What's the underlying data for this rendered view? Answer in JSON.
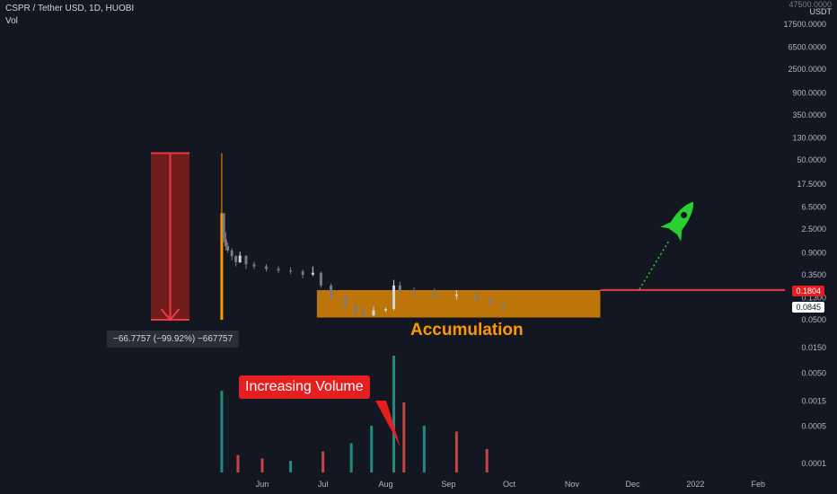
{
  "header": {
    "title": "CSPR / Tether USD, 1D, HUOBI",
    "volume_label": "Vol"
  },
  "axis": {
    "top_cut_label": "47500.0000",
    "currency": "USDT",
    "price_ticks": [
      "17500.0000",
      "6500.0000",
      "2500.0000",
      "900.0000",
      "350.0000",
      "130.0000",
      "50.0000",
      "17.5000",
      "6.5000",
      "2.5000",
      "0.9000",
      "0.3500",
      "0.1300",
      "0.0500",
      "0.0150",
      "0.0050",
      "0.0015",
      "0.0005",
      "0.0001"
    ],
    "time_ticks": [
      "Jun",
      "Jul",
      "Aug",
      "Sep",
      "Oct",
      "Nov",
      "Dec",
      "2022",
      "Feb"
    ]
  },
  "price_tags": {
    "level": "0.1804",
    "last": "0.0845"
  },
  "annotations": {
    "measure": "−66.7757 (−99.92%) −667757",
    "volume_callout": "Increasing Volume",
    "zone_label": "Accumulation"
  },
  "colors": {
    "background": "#131722",
    "up": "#26a69a",
    "down": "#ef5350",
    "zone": "#ff9800",
    "level_line": "#f23645",
    "rocket": "#28d130"
  },
  "icons": {
    "target": "rocket-icon"
  },
  "chart_data": {
    "type": "candlestick",
    "scale": "log",
    "price_range": [
      0.0001,
      47500
    ],
    "x_range": [
      "2021-05-11",
      "2022-02-28"
    ],
    "candles": [
      {
        "d": "2021-05-12",
        "o": 0.05,
        "h": 66.8,
        "l": 0.05,
        "c": 5.0
      },
      {
        "d": "2021-05-13",
        "o": 5.0,
        "h": 5.0,
        "l": 1.4,
        "c": 1.6
      },
      {
        "d": "2021-05-14",
        "o": 1.6,
        "h": 2.2,
        "l": 1.0,
        "c": 1.2
      },
      {
        "d": "2021-05-15",
        "o": 1.2,
        "h": 1.4,
        "l": 0.9,
        "c": 1.0
      },
      {
        "d": "2021-05-17",
        "o": 1.0,
        "h": 1.1,
        "l": 0.65,
        "c": 0.78
      },
      {
        "d": "2021-05-19",
        "o": 0.78,
        "h": 0.82,
        "l": 0.5,
        "c": 0.6
      },
      {
        "d": "2021-05-21",
        "o": 0.6,
        "h": 0.95,
        "l": 0.58,
        "c": 0.8
      },
      {
        "d": "2021-05-24",
        "o": 0.8,
        "h": 0.8,
        "l": 0.45,
        "c": 0.55
      },
      {
        "d": "2021-05-28",
        "o": 0.55,
        "h": 0.62,
        "l": 0.45,
        "c": 0.5
      },
      {
        "d": "2021-06-03",
        "o": 0.5,
        "h": 0.55,
        "l": 0.4,
        "c": 0.45
      },
      {
        "d": "2021-06-09",
        "o": 0.45,
        "h": 0.5,
        "l": 0.38,
        "c": 0.42
      },
      {
        "d": "2021-06-15",
        "o": 0.42,
        "h": 0.48,
        "l": 0.36,
        "c": 0.4
      },
      {
        "d": "2021-06-21",
        "o": 0.4,
        "h": 0.44,
        "l": 0.3,
        "c": 0.35
      },
      {
        "d": "2021-06-26",
        "o": 0.35,
        "h": 0.5,
        "l": 0.33,
        "c": 0.38
      },
      {
        "d": "2021-06-30",
        "o": 0.38,
        "h": 0.4,
        "l": 0.2,
        "c": 0.22
      },
      {
        "d": "2021-07-05",
        "o": 0.22,
        "h": 0.24,
        "l": 0.12,
        "c": 0.13
      },
      {
        "d": "2021-07-12",
        "o": 0.13,
        "h": 0.15,
        "l": 0.08,
        "c": 0.09
      },
      {
        "d": "2021-07-17",
        "o": 0.09,
        "h": 0.1,
        "l": 0.06,
        "c": 0.07
      },
      {
        "d": "2021-07-21",
        "o": 0.07,
        "h": 0.08,
        "l": 0.055,
        "c": 0.06
      },
      {
        "d": "2021-07-26",
        "o": 0.06,
        "h": 0.09,
        "l": 0.058,
        "c": 0.075
      },
      {
        "d": "2021-08-01",
        "o": 0.075,
        "h": 0.085,
        "l": 0.07,
        "c": 0.08
      },
      {
        "d": "2021-08-05",
        "o": 0.08,
        "h": 0.28,
        "l": 0.075,
        "c": 0.22
      },
      {
        "d": "2021-08-08",
        "o": 0.22,
        "h": 0.26,
        "l": 0.15,
        "c": 0.17
      },
      {
        "d": "2021-08-15",
        "o": 0.17,
        "h": 0.2,
        "l": 0.13,
        "c": 0.16
      },
      {
        "d": "2021-08-25",
        "o": 0.16,
        "h": 0.19,
        "l": 0.12,
        "c": 0.14
      },
      {
        "d": "2021-09-05",
        "o": 0.14,
        "h": 0.18,
        "l": 0.12,
        "c": 0.15
      },
      {
        "d": "2021-09-15",
        "o": 0.15,
        "h": 0.17,
        "l": 0.11,
        "c": 0.12
      },
      {
        "d": "2021-09-22",
        "o": 0.12,
        "h": 0.14,
        "l": 0.09,
        "c": 0.1
      },
      {
        "d": "2021-09-28",
        "o": 0.1,
        "h": 0.11,
        "l": 0.08,
        "c": 0.0845
      }
    ],
    "volume": [
      {
        "d": "2021-05-12",
        "v": 0.7,
        "up": true
      },
      {
        "d": "2021-05-20",
        "v": 0.15,
        "up": false
      },
      {
        "d": "2021-06-01",
        "v": 0.12,
        "up": false
      },
      {
        "d": "2021-06-15",
        "v": 0.1,
        "up": true
      },
      {
        "d": "2021-07-01",
        "v": 0.18,
        "up": false
      },
      {
        "d": "2021-07-15",
        "v": 0.25,
        "up": true
      },
      {
        "d": "2021-07-25",
        "v": 0.4,
        "up": true
      },
      {
        "d": "2021-08-05",
        "v": 1.0,
        "up": true
      },
      {
        "d": "2021-08-10",
        "v": 0.6,
        "up": false
      },
      {
        "d": "2021-08-20",
        "v": 0.4,
        "up": true
      },
      {
        "d": "2021-09-05",
        "v": 0.35,
        "up": false
      },
      {
        "d": "2021-09-20",
        "v": 0.2,
        "up": false
      }
    ],
    "drawings": {
      "drop_measure": {
        "from_date": "2021-05-12",
        "from_price": 66.8,
        "to_price": 0.05
      },
      "accumulation_zone": {
        "from": "2021-06-28",
        "to": "2021-11-15",
        "low": 0.055,
        "high": 0.18
      },
      "resistance_level": 0.1804
    }
  }
}
